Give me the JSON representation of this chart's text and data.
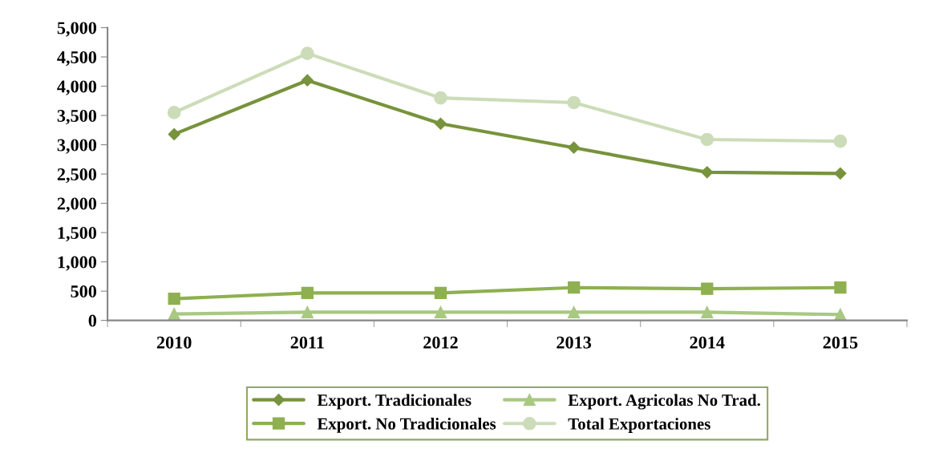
{
  "chart_data": {
    "type": "line",
    "categories": [
      "2010",
      "2011",
      "2012",
      "2013",
      "2014",
      "2015"
    ],
    "series": [
      {
        "name": "Export. Tradicionales",
        "color": "#77933c",
        "marker": "diamond",
        "values": [
          3180,
          4100,
          3360,
          2950,
          2530,
          2510
        ]
      },
      {
        "name": "Export. No Tradicionales",
        "color": "#8eb050",
        "marker": "square",
        "values": [
          370,
          470,
          470,
          560,
          540,
          560
        ]
      },
      {
        "name": "Export. Agricolas No Trad.",
        "color": "#a9c882",
        "marker": "triangle",
        "values": [
          110,
          140,
          140,
          140,
          140,
          100
        ]
      },
      {
        "name": "Total Exportaciones",
        "color": "#ccdcb8",
        "marker": "circle",
        "values": [
          3550,
          4560,
          3800,
          3720,
          3090,
          3060
        ]
      }
    ],
    "ylim": [
      0,
      5000
    ],
    "yticks": [
      {
        "value": 0,
        "label": "0"
      },
      {
        "value": 500,
        "label": "500"
      },
      {
        "value": 1000,
        "label": "1,000"
      },
      {
        "value": 1500,
        "label": "1,500"
      },
      {
        "value": 2000,
        "label": "2,000"
      },
      {
        "value": 2500,
        "label": "2,500"
      },
      {
        "value": 3000,
        "label": "3,000"
      },
      {
        "value": 3500,
        "label": "3,500"
      },
      {
        "value": 4000,
        "label": "4,000"
      },
      {
        "value": 4500,
        "label": "4,500"
      },
      {
        "value": 5000,
        "label": "5,000"
      }
    ],
    "grid": false,
    "legend": "bottom",
    "line_style": "solid"
  }
}
